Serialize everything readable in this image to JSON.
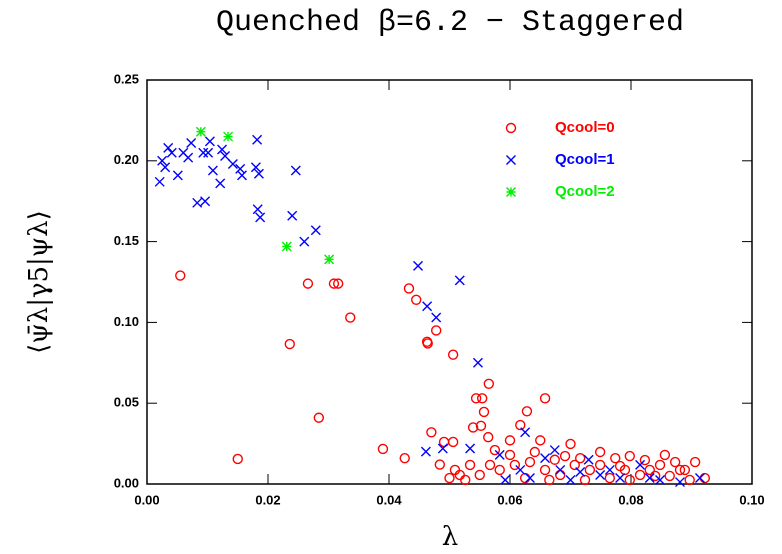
{
  "chart_data": {
    "type": "scatter",
    "title": "Quenched β=6.2 − Staggered",
    "x_label": "λ",
    "y_label": "⟨ψ̄λ|γ5|ψλ⟩",
    "xlim": [
      0,
      0.1
    ],
    "ylim": [
      0,
      0.25
    ],
    "xticks": [
      {
        "value": 0,
        "label": "0.00"
      },
      {
        "value": 0.02,
        "label": "0.02"
      },
      {
        "value": 0.04,
        "label": "0.04"
      },
      {
        "value": 0.06,
        "label": "0.06"
      },
      {
        "value": 0.08,
        "label": "0.08"
      },
      {
        "value": 0.1,
        "label": "0.10"
      }
    ],
    "yticks": [
      {
        "value": 0,
        "label": "0.00"
      },
      {
        "value": 0.05,
        "label": "0.05"
      },
      {
        "value": 0.1,
        "label": "0.10"
      },
      {
        "value": 0.15,
        "label": "0.15"
      },
      {
        "value": 0.2,
        "label": "0.20"
      },
      {
        "value": 0.25,
        "label": "0.25"
      }
    ],
    "series": [
      {
        "name": "Qcool=0",
        "color": "#ff0000",
        "marker": "o",
        "x": [
          0.0055,
          0.0236,
          0.0266,
          0.0309,
          0.0316,
          0.0336,
          0.015,
          0.0284,
          0.039,
          0.0426,
          0.0433,
          0.0445,
          0.0463,
          0.0464,
          0.0478,
          0.0506,
          0.047,
          0.0491,
          0.0506,
          0.0565,
          0.0554,
          0.0557,
          0.0552,
          0.0544,
          0.0539,
          0.0658,
          0.0628,
          0.06,
          0.0564,
          0.0484,
          0.0517,
          0.0509,
          0.0617,
          0.07,
          0.0749,
          0.0798,
          0.0881,
          0.0922,
          0.0906,
          0.0848,
          0.065,
          0.0674,
          0.0732,
          0.0815,
          0.0782,
          0.0583,
          0.055,
          0.0534,
          0.06,
          0.0633,
          0.0683,
          0.0707,
          0.0765,
          0.0831,
          0.0864,
          0.0897,
          0.0658,
          0.0625,
          0.0724,
          0.0774,
          0.0823,
          0.0856,
          0.0641,
          0.0691,
          0.0749,
          0.0798,
          0.0575,
          0.0526,
          0.05,
          0.0567,
          0.0608,
          0.0665,
          0.0716,
          0.079,
          0.084,
          0.0873,
          0.0889
        ],
        "values": [
          0.129,
          0.0866,
          0.124,
          0.124,
          0.124,
          0.103,
          0.0155,
          0.041,
          0.0217,
          0.016,
          0.121,
          0.114,
          0.088,
          0.087,
          0.095,
          0.08,
          0.032,
          0.026,
          0.026,
          0.062,
          0.053,
          0.0446,
          0.036,
          0.053,
          0.035,
          0.053,
          0.045,
          0.027,
          0.029,
          0.012,
          0.0056,
          0.0087,
          0.0365,
          0.0248,
          0.0198,
          0.0173,
          0.0087,
          0.0037,
          0.0136,
          0.0118,
          0.027,
          0.015,
          0.0087,
          0.0056,
          0.0111,
          0.0087,
          0.0056,
          0.0118,
          0.018,
          0.0136,
          0.0056,
          0.0118,
          0.0037,
          0.0087,
          0.005,
          0.0025,
          0.0087,
          0.0037,
          0.0025,
          0.016,
          0.0148,
          0.018,
          0.0198,
          0.0173,
          0.0118,
          0.0025,
          0.021,
          0.0025,
          0.0037,
          0.0118,
          0.0118,
          0.0025,
          0.016,
          0.0087,
          0.005,
          0.0136,
          0.0087
        ]
      },
      {
        "name": "Qcool=1",
        "color": "#0000ff",
        "marker": "x",
        "x": [
          0.0021,
          0.0025,
          0.003,
          0.0035,
          0.0041,
          0.0051,
          0.006,
          0.0068,
          0.0073,
          0.0083,
          0.0096,
          0.0093,
          0.0101,
          0.0104,
          0.0109,
          0.0121,
          0.0124,
          0.0129,
          0.0142,
          0.0154,
          0.0157,
          0.018,
          0.0182,
          0.0185,
          0.0183,
          0.0187,
          0.0246,
          0.024,
          0.026,
          0.0279,
          0.0448,
          0.0517,
          0.0463,
          0.0478,
          0.0547,
          0.0461,
          0.0489,
          0.0534,
          0.0625,
          0.0583,
          0.0617,
          0.0658,
          0.0683,
          0.073,
          0.0749,
          0.0782,
          0.0815,
          0.0848,
          0.0716,
          0.0592,
          0.07,
          0.0765,
          0.0831,
          0.0881,
          0.0633,
          0.0674,
          0.0914
        ],
        "values": [
          0.187,
          0.2,
          0.196,
          0.208,
          0.205,
          0.191,
          0.205,
          0.202,
          0.211,
          0.174,
          0.175,
          0.205,
          0.205,
          0.212,
          0.194,
          0.186,
          0.207,
          0.203,
          0.198,
          0.195,
          0.191,
          0.196,
          0.213,
          0.192,
          0.17,
          0.165,
          0.194,
          0.166,
          0.15,
          0.157,
          0.135,
          0.126,
          0.11,
          0.103,
          0.075,
          0.02,
          0.022,
          0.022,
          0.032,
          0.018,
          0.0087,
          0.016,
          0.0087,
          0.015,
          0.0056,
          0.0037,
          0.0118,
          0.0025,
          0.0074,
          0.0025,
          0.0025,
          0.0087,
          0.0037,
          0.0012,
          0.0037,
          0.021,
          0.0037
        ]
      },
      {
        "name": "Qcool=2",
        "color": "#00ee00",
        "marker": "*",
        "x": [
          0.0089,
          0.0134,
          0.0231,
          0.0301
        ],
        "values": [
          0.218,
          0.215,
          0.147,
          0.139
        ]
      }
    ]
  }
}
